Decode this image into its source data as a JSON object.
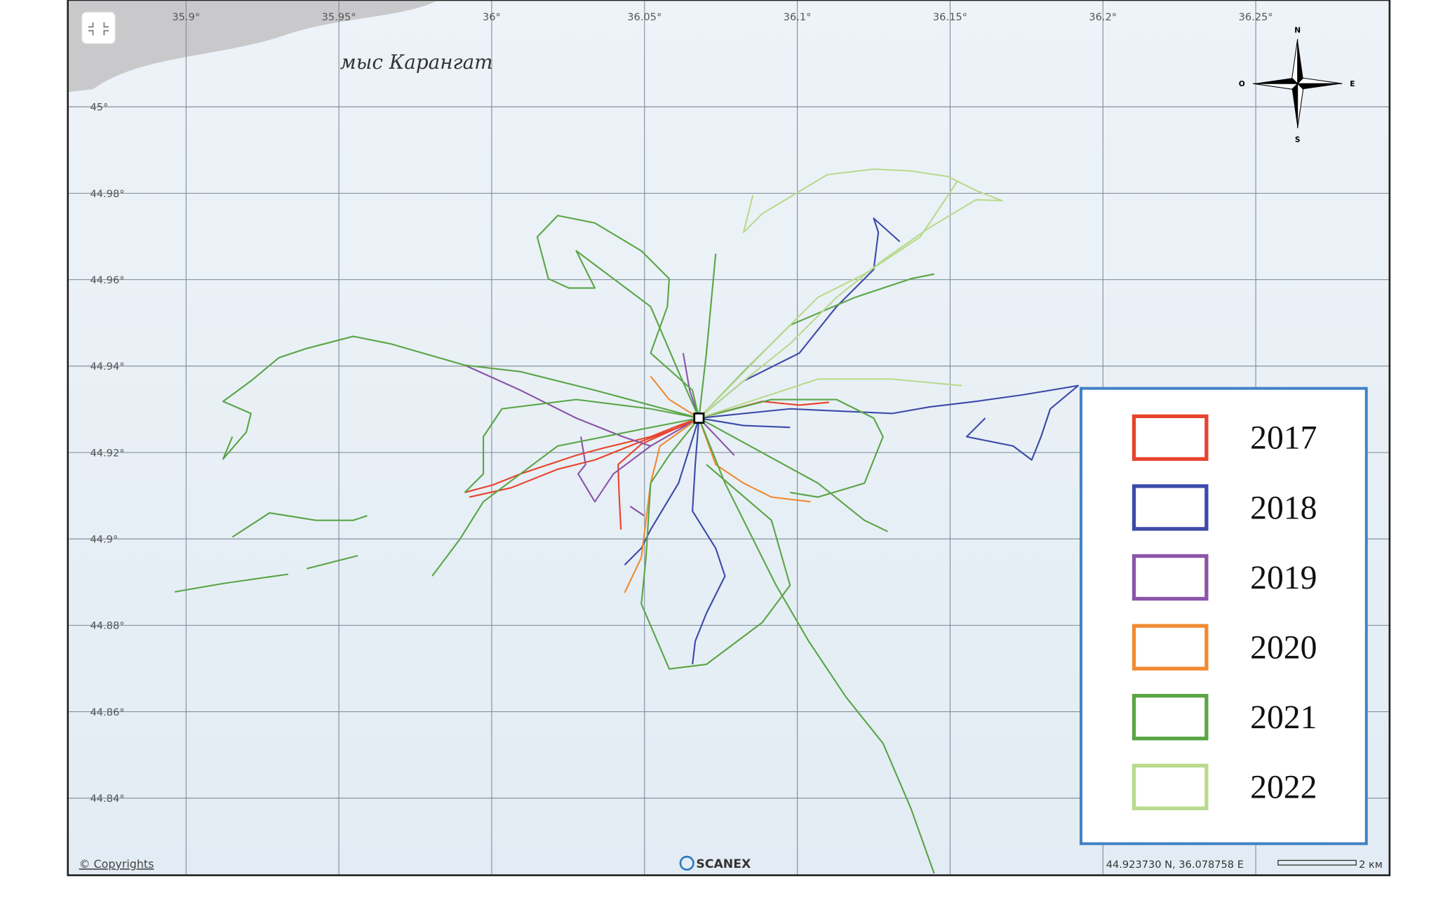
{
  "map": {
    "grid": {
      "lon": [
        {
          "value": 35.9,
          "label": "35.9°"
        },
        {
          "value": 35.95,
          "label": "35.95°"
        },
        {
          "value": 36,
          "label": "36°"
        },
        {
          "value": 36.05,
          "label": "36.05°"
        },
        {
          "value": 36.1,
          "label": "36.1°"
        },
        {
          "value": 36.15,
          "label": "36.15°"
        },
        {
          "value": 36.2,
          "label": "36.2°"
        },
        {
          "value": 36.25,
          "label": "36.25°"
        }
      ],
      "lat": [
        {
          "value": 45,
          "label": "45°"
        },
        {
          "value": 44.98,
          "label": "44.98°"
        },
        {
          "value": 44.96,
          "label": "44.96°"
        },
        {
          "value": 44.94,
          "label": "44.94°"
        },
        {
          "value": 44.92,
          "label": "44.92°"
        },
        {
          "value": 44.9,
          "label": "44.9°"
        },
        {
          "value": 44.88,
          "label": "44.88°"
        },
        {
          "value": 44.86,
          "label": "44.86°"
        },
        {
          "value": 44.84,
          "label": "44.84°"
        }
      ]
    },
    "place_label": "мыс Карангат",
    "compass": {
      "n": "N",
      "e": "E",
      "s": "S",
      "w": "O"
    },
    "legend": [
      {
        "name": "2017",
        "color": "#e8432d"
      },
      {
        "name": "2018",
        "color": "#3c4aa8"
      },
      {
        "name": "2019",
        "color": "#8b55a8"
      },
      {
        "name": "2020",
        "color": "#f08a30"
      },
      {
        "name": "2021",
        "color": "#5aa545"
      },
      {
        "name": "2022",
        "color": "#b9da8e"
      }
    ],
    "footer": {
      "copyright": "© Copyrights",
      "brand": "SCANEX",
      "coordinates": "44.923730 N, 36.078758 E",
      "scale": "2 км"
    }
  }
}
